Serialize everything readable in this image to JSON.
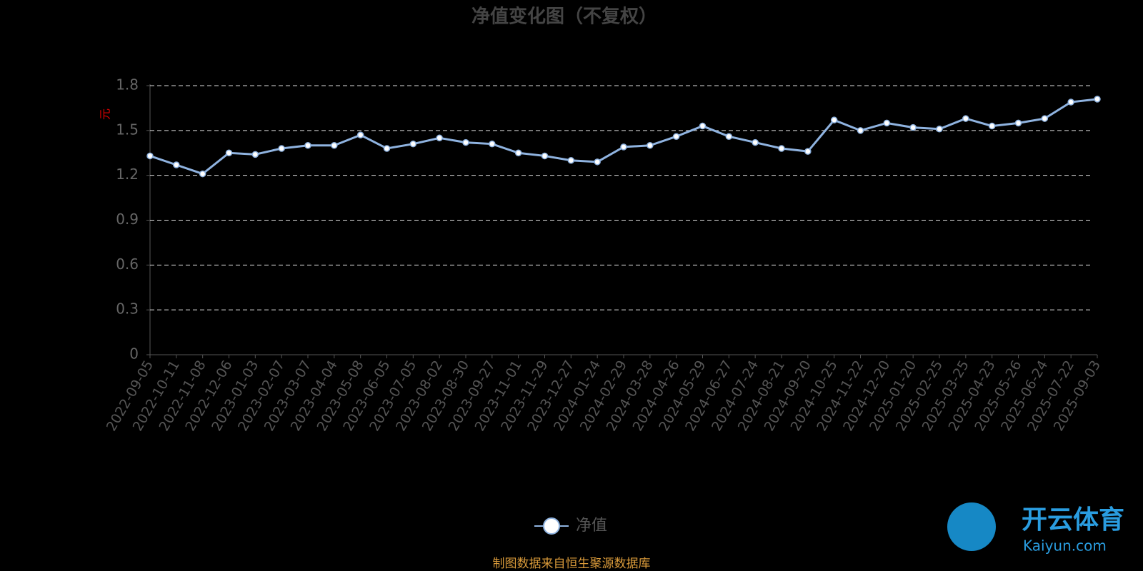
{
  "chart_data": {
    "type": "line",
    "title": "净值变化图（不复权）",
    "y_label": "元",
    "categories": [
      "2022-09-05",
      "2022-10-11",
      "2022-11-08",
      "2022-12-06",
      "2023-01-03",
      "2023-02-07",
      "2023-03-07",
      "2023-04-04",
      "2023-05-08",
      "2023-06-05",
      "2023-07-05",
      "2023-08-02",
      "2023-08-30",
      "2023-09-27",
      "2023-11-01",
      "2023-11-29",
      "2023-12-27",
      "2024-01-24",
      "2024-02-29",
      "2024-03-28",
      "2024-04-26",
      "2024-05-29",
      "2024-06-27",
      "2024-07-24",
      "2024-08-21",
      "2024-09-20",
      "2024-10-25",
      "2024-11-22",
      "2024-12-20",
      "2025-01-20",
      "2025-02-25",
      "2025-03-25",
      "2025-04-23",
      "2025-05-26",
      "2025-06-24",
      "2025-07-22",
      "2025-09-03"
    ],
    "series": [
      {
        "name": "净值",
        "color": "#8fb3e0",
        "values": [
          1.33,
          1.27,
          1.21,
          1.35,
          1.34,
          1.38,
          1.4,
          1.4,
          1.47,
          1.38,
          1.41,
          1.45,
          1.42,
          1.41,
          1.35,
          1.33,
          1.3,
          1.29,
          1.39,
          1.4,
          1.46,
          1.53,
          1.46,
          1.42,
          1.38,
          1.36,
          1.57,
          1.5,
          1.55,
          1.52,
          1.51,
          1.58,
          1.53,
          1.55,
          1.58,
          1.69,
          1.71
        ]
      }
    ],
    "ylim": [
      0,
      1.8
    ],
    "yticks": [
      0,
      0.3,
      0.6,
      0.9,
      1.2,
      1.5,
      1.8
    ],
    "grid": true,
    "source": "制图数据来自恒生聚源数据库",
    "watermark": {
      "brand": "开云体育",
      "site": "Kaiyun.com"
    }
  }
}
